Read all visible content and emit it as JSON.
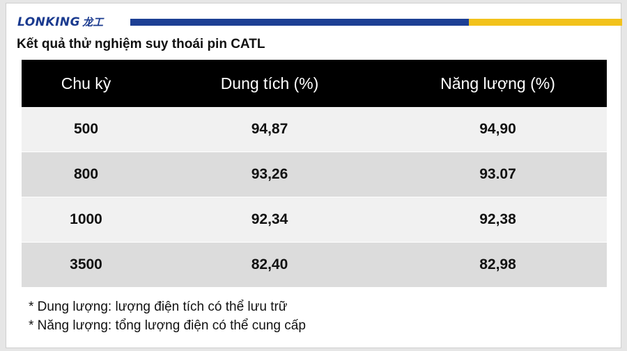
{
  "logo": {
    "text": "LONKING",
    "cn": "龙工"
  },
  "colors": {
    "band_blue": "#1d3f94",
    "band_yellow": "#f2c21b",
    "header_bg": "#000000"
  },
  "title": "Kết quả thử nghiệm suy thoái pin CATL",
  "table": {
    "headers": [
      "Chu kỳ",
      "Dung tích (%)",
      "Năng lượng (%)"
    ],
    "rows": [
      [
        "500",
        "94,87",
        "94,90"
      ],
      [
        "800",
        "93,26",
        "93.07"
      ],
      [
        "1000",
        "92,34",
        "92,38"
      ],
      [
        "3500",
        "82,40",
        "82,98"
      ]
    ]
  },
  "notes": [
    "* Dung lượng: lượng điện tích có thể lưu trữ",
    "* Năng lượng: tổng lượng điện có thể cung cấp"
  ]
}
